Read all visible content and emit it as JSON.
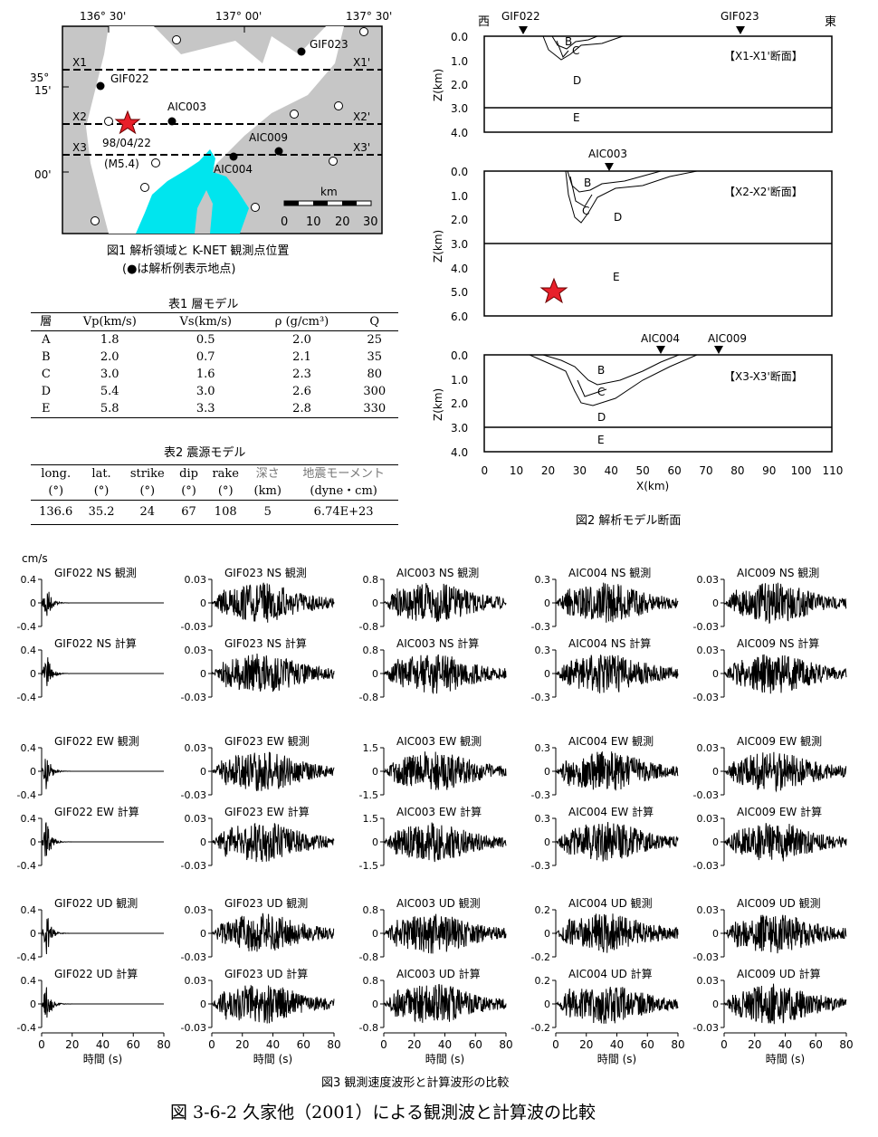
{
  "map": {
    "top_labels": [
      "136° 30'",
      "137° 00'",
      "137° 30'"
    ],
    "left_labels": [
      "35°",
      "15'",
      "00'"
    ],
    "line_labels": [
      {
        "left": "X1",
        "right": "X1'"
      },
      {
        "left": "X2",
        "right": "X2'"
      },
      {
        "left": "X3",
        "right": "X3'"
      }
    ],
    "stations": [
      "GIF023",
      "GIF022",
      "AIC003",
      "AIC009",
      "AIC004"
    ],
    "event_date": "98/04/22",
    "event_mag": "(M5.4)",
    "scale_unit": "km",
    "scale_ticks": [
      "0",
      "10",
      "20",
      "30"
    ]
  },
  "fig1": {
    "caption": "図1  解析領域と K-NET 観測点位置",
    "subcaption": "(●は解析例表示地点)"
  },
  "table1": {
    "title": "表1  層モデル",
    "headers": [
      "層",
      "Vp(km/s)",
      "Vs(km/s)",
      "ρ (g/cm³)",
      "Q"
    ],
    "rows": [
      [
        "A",
        "1.8",
        "0.5",
        "2.0",
        "25"
      ],
      [
        "B",
        "2.0",
        "0.7",
        "2.1",
        "35"
      ],
      [
        "C",
        "3.0",
        "1.6",
        "2.3",
        "80"
      ],
      [
        "D",
        "5.4",
        "3.0",
        "2.6",
        "300"
      ],
      [
        "E",
        "5.8",
        "3.3",
        "2.8",
        "330"
      ]
    ]
  },
  "table2": {
    "title": "表2  震源モデル",
    "headers": [
      "long.",
      "lat.",
      "strike",
      "dip",
      "rake",
      "深さ",
      "地震モーメント"
    ],
    "units": [
      "(°)",
      "(°)",
      "(°)",
      "(°)",
      "(°)",
      "(km)",
      "(dyne・cm)"
    ],
    "row": [
      "136.6",
      "35.2",
      "24",
      "67",
      "108",
      "5",
      "6.74E+23"
    ]
  },
  "fig2": {
    "caption": "図2  解析モデル断面",
    "west": "西",
    "east": "東",
    "ylabel": "Z(km)",
    "xlabel": "X(km)",
    "x_ticks": [
      "0",
      "10",
      "20",
      "30",
      "40",
      "50",
      "60",
      "70",
      "80",
      "90",
      "100",
      "110"
    ],
    "sections": [
      {
        "title": "【X1-X1'断面】",
        "stations": [
          "GIF022",
          "GIF023"
        ],
        "y_ticks": [
          "0.0",
          "1.0",
          "2.0",
          "3.0",
          "4.0"
        ],
        "layers": [
          "B",
          "C",
          "D",
          "E"
        ]
      },
      {
        "title": "【X2-X2'断面】",
        "stations": [
          "AIC003"
        ],
        "y_ticks": [
          "0.0",
          "1.0",
          "2.0",
          "3.0",
          "4.0",
          "5.0",
          "6.0"
        ],
        "layers": [
          "B",
          "C",
          "D",
          "E"
        ]
      },
      {
        "title": "【X3-X3'断面】",
        "stations": [
          "AIC004",
          "AIC009"
        ],
        "y_ticks": [
          "0.0",
          "1.0",
          "2.0",
          "3.0",
          "4.0"
        ],
        "layers": [
          "B",
          "C",
          "D",
          "E"
        ]
      }
    ]
  },
  "fig3": {
    "unit": "cm/s",
    "xlabel": "時間 (s)",
    "x_ticks": [
      "0",
      "20",
      "40",
      "60",
      "80"
    ],
    "caption": "図3  観測速度波形と計算波形の比較",
    "rows": [
      {
        "labels": [
          "GIF022 NS 観測",
          "GIF023 NS 観測",
          "AIC003 NS 観測",
          "AIC004 NS 観測",
          "AIC009 NS 観測"
        ],
        "ticks": [
          [
            "0.4",
            "0",
            "-0.4"
          ],
          [
            "0.03",
            "0",
            "-0.03"
          ],
          [
            "0.8",
            "0",
            "-0.8"
          ],
          [
            "0.3",
            "0",
            "-0.3"
          ],
          [
            "0.03",
            "0",
            "-0.03"
          ]
        ]
      },
      {
        "labels": [
          "GIF022 NS 計算",
          "GIF023 NS 計算",
          "AIC003 NS 計算",
          "AIC004 NS 計算",
          "AIC009 NS 計算"
        ],
        "ticks": [
          [
            "0.4",
            "0",
            "-0.4"
          ],
          [
            "0.03",
            "0",
            "-0.03"
          ],
          [
            "0.8",
            "0",
            "-0.8"
          ],
          [
            "0.3",
            "0",
            "-0.3"
          ],
          [
            "0.03",
            "0",
            "-0.03"
          ]
        ]
      },
      {
        "labels": [
          "GIF022 EW 観測",
          "GIF023 EW 観測",
          "AIC003 EW 観測",
          "AIC004 EW 観測",
          "AIC009 EW 観測"
        ],
        "ticks": [
          [
            "0.4",
            "0",
            "-0.4"
          ],
          [
            "0.03",
            "0",
            "-0.03"
          ],
          [
            "1.5",
            "0",
            "-1.5"
          ],
          [
            "0.3",
            "0",
            "-0.3"
          ],
          [
            "0.03",
            "0",
            "-0.03"
          ]
        ]
      },
      {
        "labels": [
          "GIF022 EW 計算",
          "GIF023 EW 計算",
          "AIC003 EW 計算",
          "AIC004 EW 計算",
          "AIC009 EW 計算"
        ],
        "ticks": [
          [
            "0.4",
            "0",
            "-0.4"
          ],
          [
            "0.03",
            "0",
            "-0.03"
          ],
          [
            "1.5",
            "0",
            "-1.5"
          ],
          [
            "0.3",
            "0",
            "-0.3"
          ],
          [
            "0.03",
            "0",
            "-0.03"
          ]
        ]
      },
      {
        "labels": [
          "GIF022 UD 観測",
          "GIF023 UD 観測",
          "AIC003 UD 観測",
          "AIC004 UD 観測",
          "AIC009 UD 観測"
        ],
        "ticks": [
          [
            "0.4",
            "0",
            "-0.4"
          ],
          [
            "0.03",
            "0",
            "-0.03"
          ],
          [
            "0.8",
            "0",
            "-0.8"
          ],
          [
            "0.2",
            "0",
            "-0.2"
          ],
          [
            "0.03",
            "0",
            "-0.03"
          ]
        ]
      },
      {
        "labels": [
          "GIF022 UD 計算",
          "GIF023 UD 計算",
          "AIC003 UD 計算",
          "AIC004 UD 計算",
          "AIC009 UD 計算"
        ],
        "ticks": [
          [
            "0.4",
            "0",
            "-0.4"
          ],
          [
            "0.03",
            "0",
            "-0.03"
          ],
          [
            "0.8",
            "0",
            "-0.8"
          ],
          [
            "0.2",
            "0",
            "-0.2"
          ],
          [
            "0.03",
            "0",
            "-0.03"
          ]
        ]
      }
    ]
  },
  "figure_caption": "図 3-6-2      久家他（2001）による観測波と計算波の比較"
}
